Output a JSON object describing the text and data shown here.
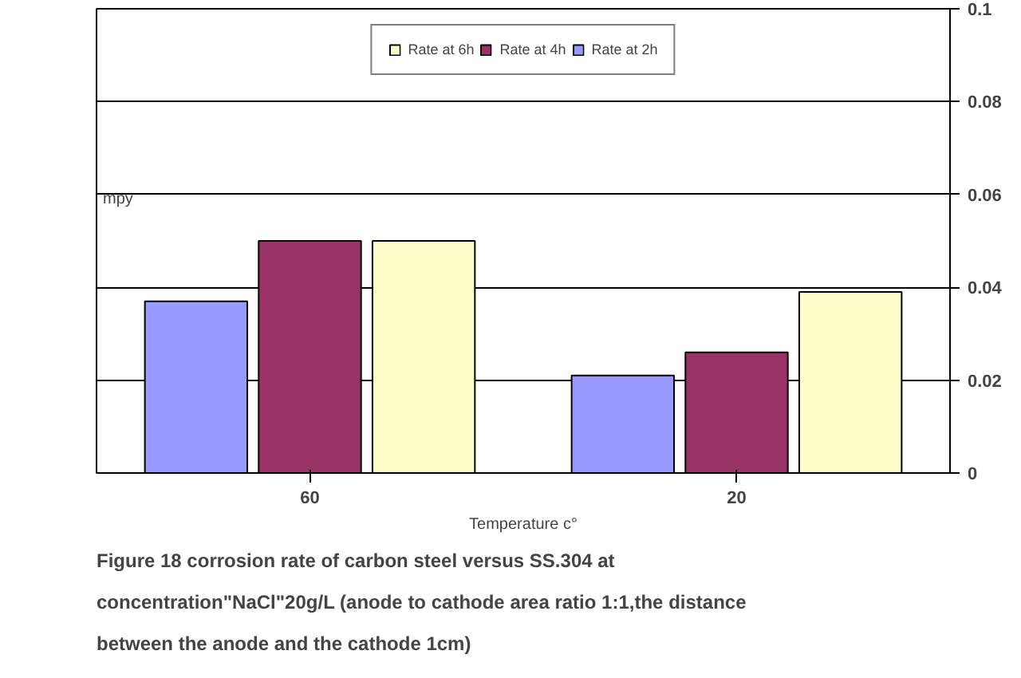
{
  "chart_data": {
    "type": "bar",
    "title": "Figure 18 corrosion rate of carbon steel versus SS.304 at concentration\"NaCl\"20g/L  (anode to cathode area ratio 1:1,the distance between the anode and the cathode 1cm)",
    "xlabel": "Temperature c°",
    "ylabel": "mpy",
    "categories": [
      "60",
      "20"
    ],
    "series": [
      {
        "name": "Rate at 2h",
        "color": "#9999ff",
        "values": [
          0.037,
          0.021
        ]
      },
      {
        "name": "Rate at 4h",
        "color": "#993366",
        "values": [
          0.05,
          0.026
        ]
      },
      {
        "name": "Rate at 6h",
        "color": "#ffffcc",
        "values": [
          0.05,
          0.039
        ]
      }
    ],
    "ylim": [
      0,
      0.1
    ],
    "yticks": [
      0,
      0.02,
      0.04,
      0.06,
      0.08,
      0.1
    ],
    "grid": "y",
    "legend": "top"
  }
}
